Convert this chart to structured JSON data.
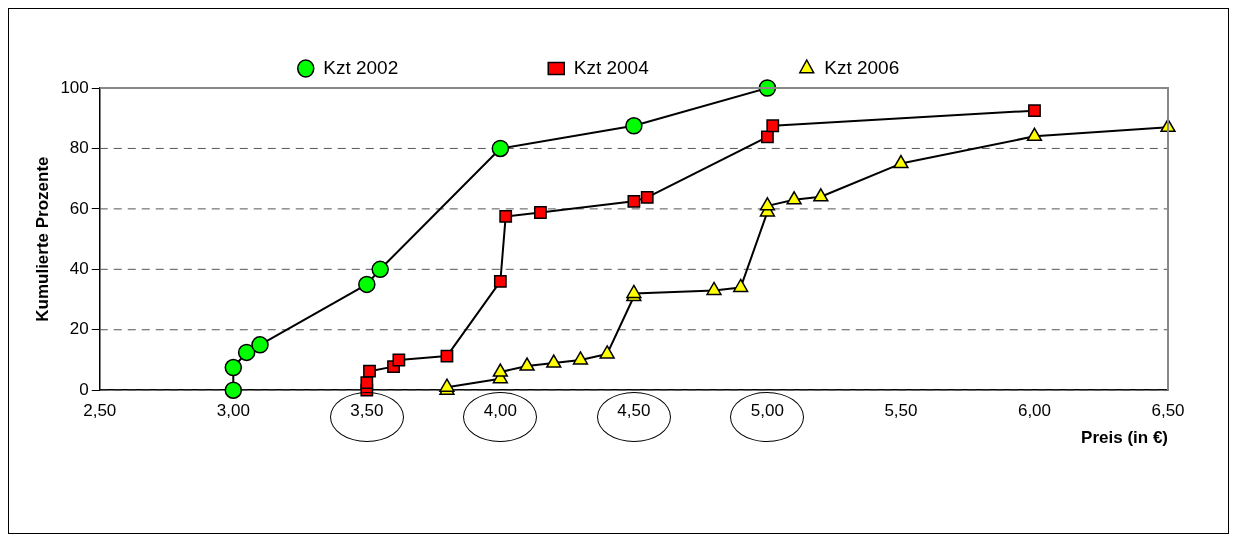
{
  "chart_data": {
    "type": "line",
    "xlabel": "Preis (in €)",
    "ylabel": "Kumulierte Prozente",
    "xlim": [
      2.5,
      6.5
    ],
    "xticks": [
      {
        "value": 2.5,
        "label": "2,50"
      },
      {
        "value": 3,
        "label": "3,00"
      },
      {
        "value": 3.5,
        "label": "3,50"
      },
      {
        "value": 4,
        "label": "4,00"
      },
      {
        "value": 4.5,
        "label": "4,50"
      },
      {
        "value": 5,
        "label": "5,00"
      },
      {
        "value": 5.5,
        "label": "5,50"
      },
      {
        "value": 6,
        "label": "6,00"
      },
      {
        "value": 6.5,
        "label": "6,50"
      }
    ],
    "ylim": [
      0,
      100
    ],
    "yticks": [
      0,
      20,
      40,
      60,
      80,
      100
    ],
    "grid": "y",
    "legend": "top",
    "line_style": "solid",
    "series": [
      {
        "name": "Kzt 2002",
        "color": "#00ff00",
        "marker": "circle",
        "x": [
          3.0,
          3.0,
          3.05,
          3.1,
          3.5,
          3.55,
          4.0,
          4.5,
          5.0
        ],
        "values": [
          0,
          7.5,
          12.5,
          15,
          35,
          40,
          80,
          87.5,
          100
        ]
      },
      {
        "name": "Kzt 2004",
        "color": "#ff0000",
        "marker": "square",
        "x": [
          3.5,
          3.5,
          3.51,
          3.6,
          3.62,
          3.8,
          4.0,
          4.02,
          4.15,
          4.5,
          4.55,
          5.0,
          5.02,
          6.0
        ],
        "values": [
          0,
          2.5,
          6.3,
          7.8,
          10,
          11.3,
          36,
          57.5,
          58.8,
          62.5,
          63.8,
          83.8,
          87.5,
          92.5
        ]
      },
      {
        "name": "Kzt 2006",
        "color": "#ffff00",
        "marker": "triangle",
        "x": [
          3.8,
          3.8,
          4.0,
          4.0,
          4.1,
          4.2,
          4.3,
          4.4,
          4.5,
          4.5,
          4.8,
          4.9,
          5.0,
          5.0,
          5.1,
          5.2,
          5.5,
          6.0,
          6.5
        ],
        "values": [
          0,
          1,
          3.8,
          6,
          8,
          9,
          10,
          12,
          31,
          32,
          33,
          34,
          59,
          61,
          63,
          64,
          75,
          84,
          87
        ]
      }
    ]
  }
}
